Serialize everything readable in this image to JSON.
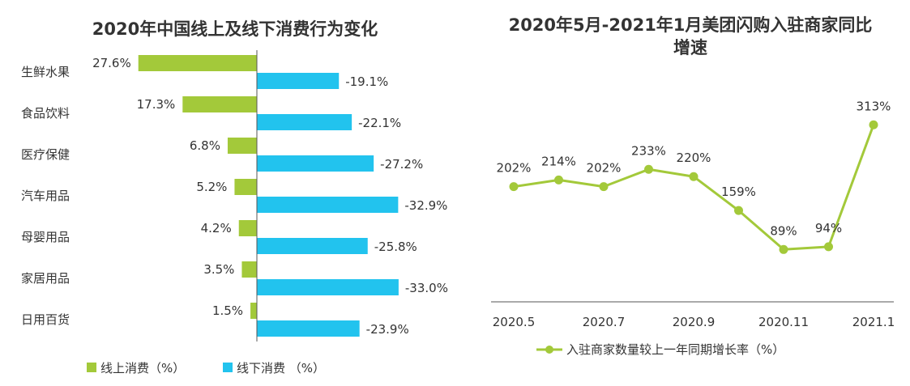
{
  "chart_data": [
    {
      "type": "bar",
      "orientation": "horizontal",
      "title": "2020年中国线上及线下消费行为变化",
      "categories": [
        "生鲜水果",
        "食品饮料",
        "医疗保健",
        "汽车用品",
        "母婴用品",
        "家居用品",
        "日用百货"
      ],
      "series": [
        {
          "name": "线上消费（%）",
          "color": "#a3c93a",
          "values": [
            27.6,
            17.3,
            6.8,
            5.2,
            4.2,
            3.5,
            1.5
          ],
          "labels": [
            "27.6%",
            "17.3%",
            "6.8%",
            "5.2%",
            "4.2%",
            "3.5%",
            "1.5%"
          ]
        },
        {
          "name": "线下消费 （%）",
          "color": "#22c3ee",
          "values": [
            -19.1,
            -22.1,
            -27.2,
            -32.9,
            -25.8,
            -33.0,
            -23.9
          ],
          "labels": [
            "-19.1%",
            "-22.1%",
            "-27.2%",
            "-32.9%",
            "-25.8%",
            "-33.0%",
            "-23.9%"
          ]
        }
      ],
      "xlabel": "",
      "ylabel": "",
      "legend": "bottom-left"
    },
    {
      "type": "line",
      "title": "2020年5月-2021年1月美团闪购入驻商家同比增速",
      "title_lines": [
        "2020年5月-2021年1月美团闪购入驻商家同比",
        "增速"
      ],
      "x": [
        "2020.5",
        "2020.6",
        "2020.7",
        "2020.8",
        "2020.9",
        "2020.10",
        "2020.11",
        "2020.12",
        "2021.1"
      ],
      "tick_labels": [
        "2020.5",
        "2020.7",
        "2020.9",
        "2020.11",
        "2021.1"
      ],
      "series": [
        {
          "name": "入驻商家数量较上一年同期增长率（%）",
          "color": "#a3c93a",
          "values": [
            202,
            214,
            202,
            233,
            220,
            159,
            89,
            94,
            313
          ],
          "labels": [
            "202%",
            "214%",
            "202%",
            "233%",
            "220%",
            "159%",
            "89%",
            "94%",
            "313%"
          ]
        }
      ],
      "legend": "bottom-center"
    }
  ]
}
